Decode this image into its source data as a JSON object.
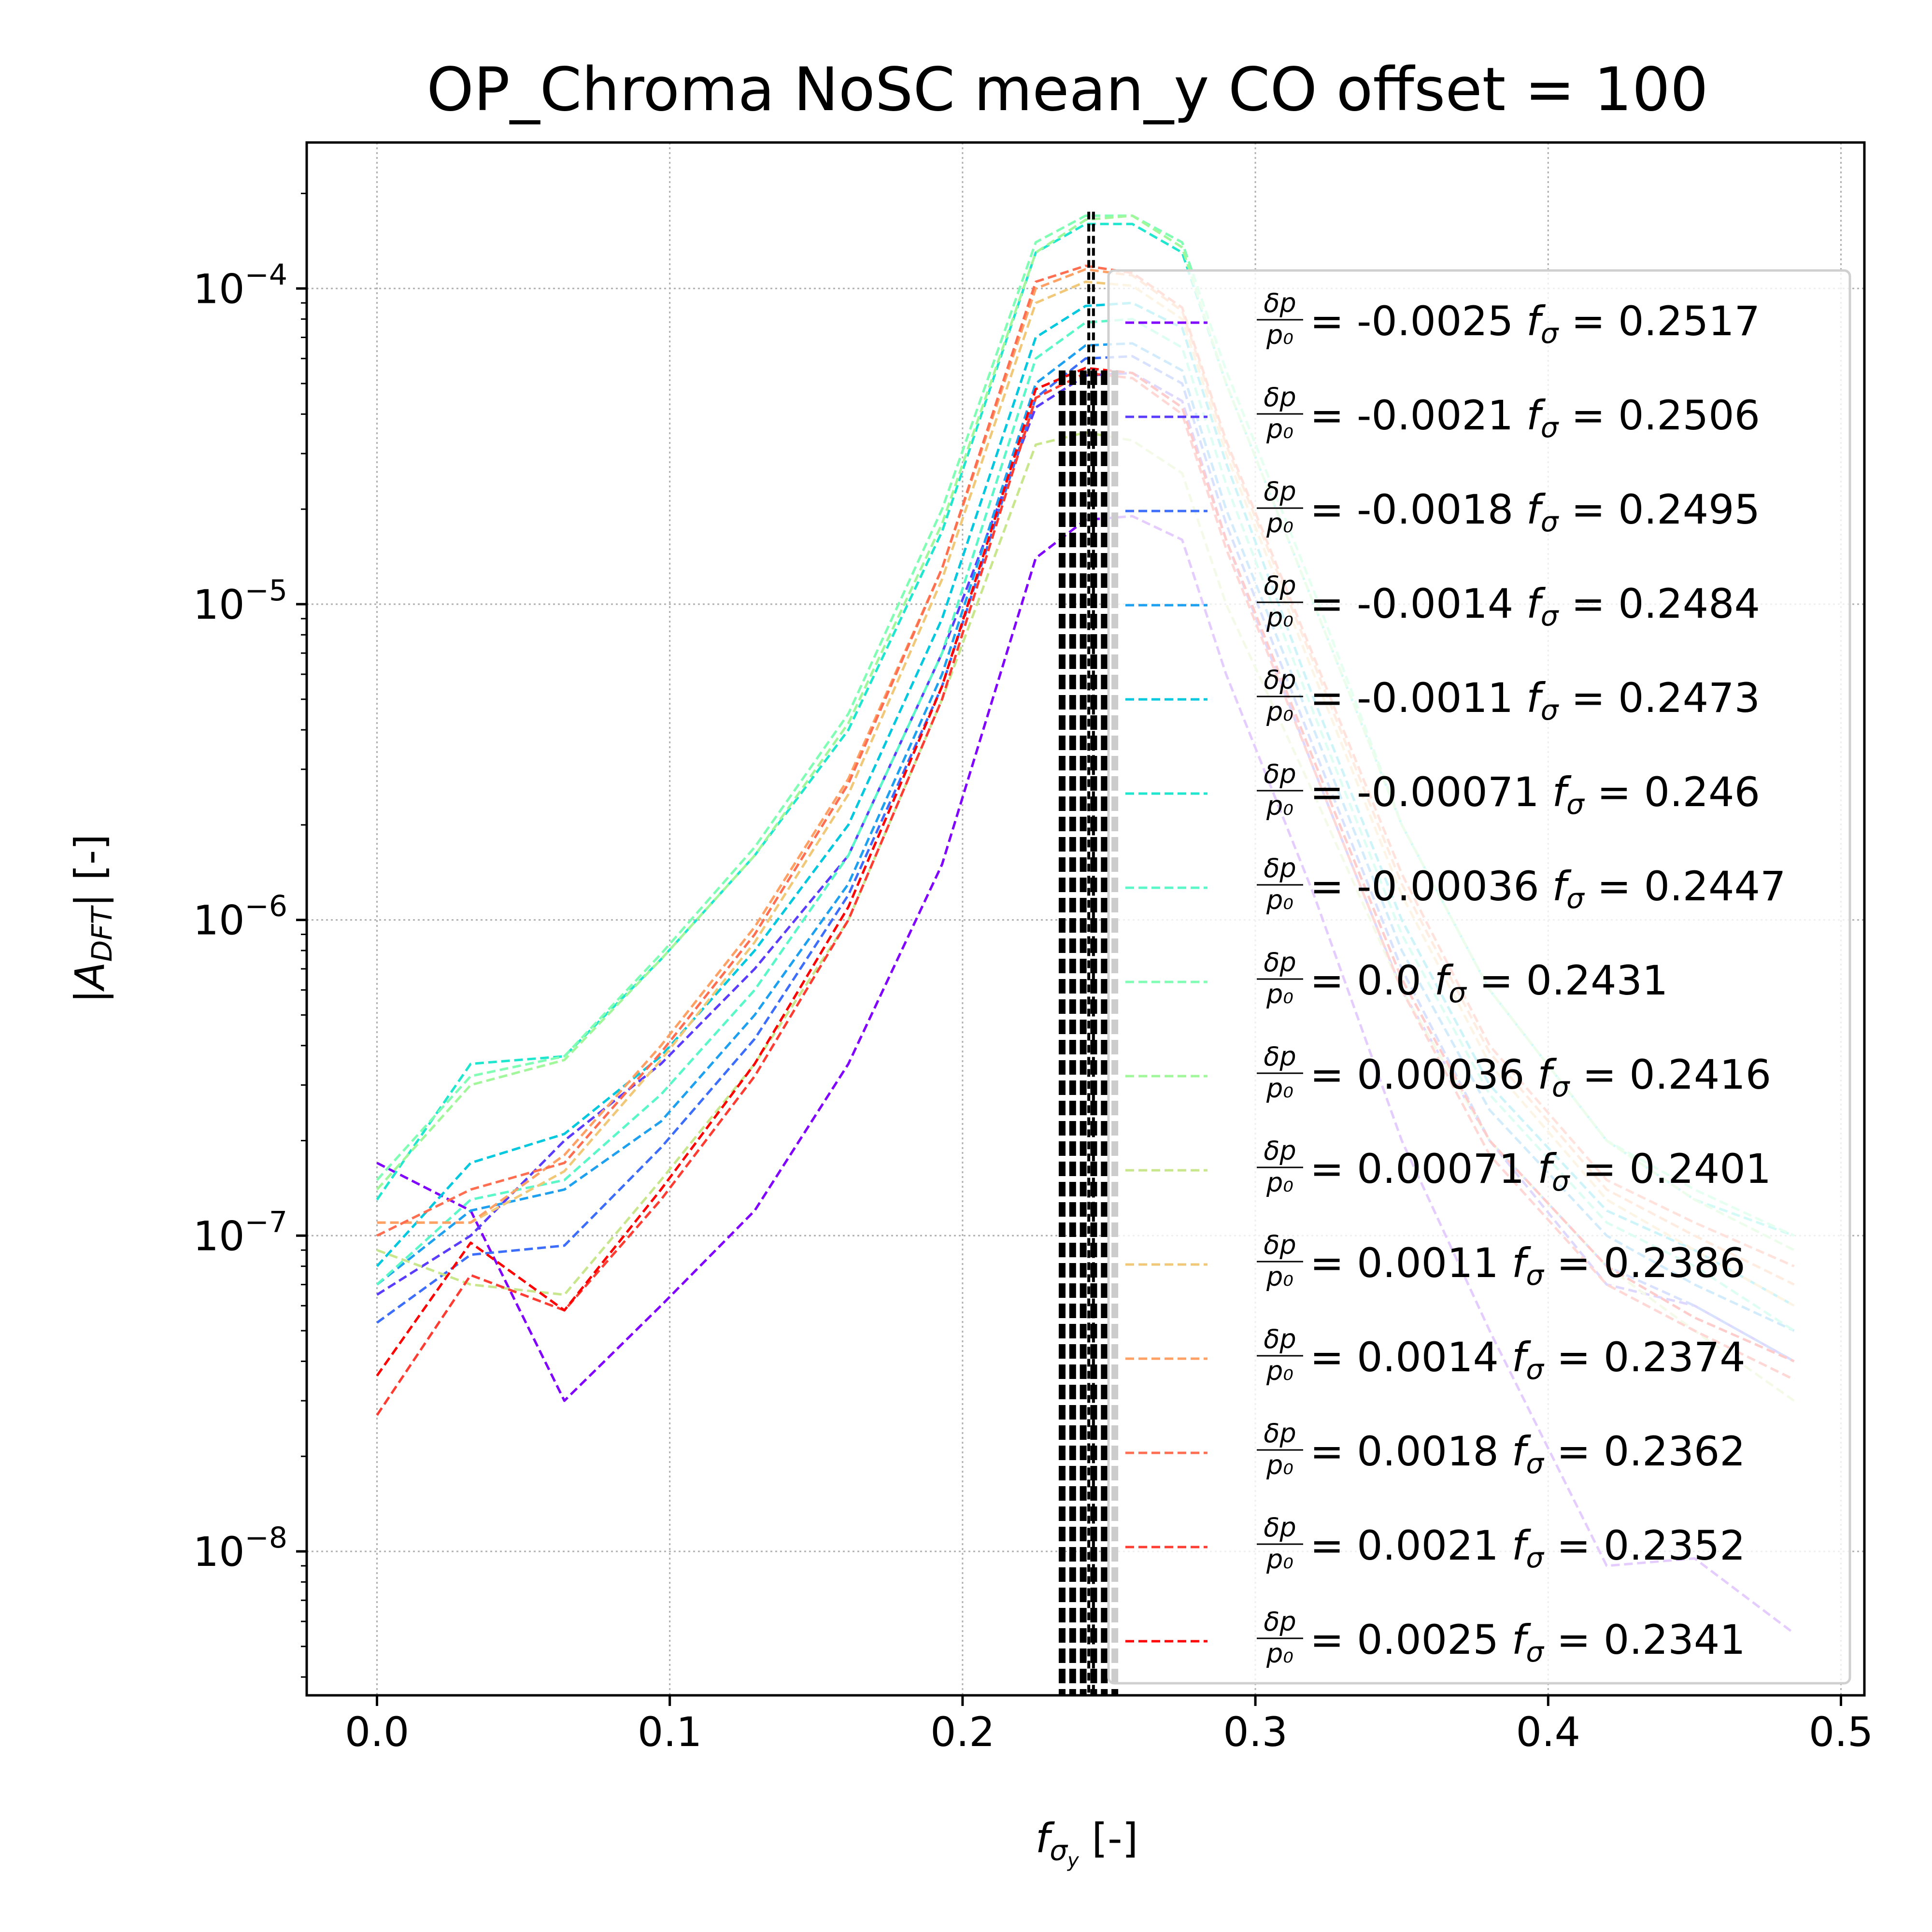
{
  "chart_data": {
    "type": "line",
    "title": "OP_Chroma NoSC mean_y  CO offset = 100",
    "xlabel": "f_σy [-]",
    "ylabel": "|A_DFT| [-]",
    "xscale": "linear",
    "yscale": "log",
    "xlim": [
      -0.024,
      0.508
    ],
    "ylim": [
      3.5e-09,
      0.00029
    ],
    "xticks": [
      "0.0",
      "0.1",
      "0.2",
      "0.3",
      "0.4",
      "0.5"
    ],
    "yticks": [
      {
        "base": "10",
        "exp": "−4",
        "value": 0.0001
      },
      {
        "base": "10",
        "exp": "−5",
        "value": 1e-05
      },
      {
        "base": "10",
        "exp": "−6",
        "value": 1e-06
      },
      {
        "base": "10",
        "exp": "−7",
        "value": 1e-07
      },
      {
        "base": "10",
        "exp": "−8",
        "value": 1e-08
      }
    ],
    "grid": true,
    "legend_position": "right",
    "vertical_markers": {
      "x_from": 0.234,
      "x_to": 0.252,
      "style": "thick dashed black",
      "peak_lines_x": [
        0.2431,
        0.2447
      ]
    },
    "series": [
      {
        "dp": "-0.0025",
        "f_sigma": "0.2517",
        "color": "#7f00ff",
        "x": [
          0.0,
          0.032,
          0.064,
          0.097,
          0.129,
          0.161,
          0.193,
          0.225,
          0.242,
          0.258,
          0.275,
          0.29,
          0.32,
          0.35,
          0.38,
          0.42,
          0.45,
          0.484
        ],
        "y": [
          1.7e-07,
          1.2e-07,
          3e-08,
          6e-08,
          1.2e-07,
          3.5e-07,
          1.5e-06,
          1.4e-05,
          1.85e-05,
          1.9e-05,
          1.6e-05,
          6e-06,
          1.2e-06,
          2e-07,
          5e-08,
          9e-09,
          9.5e-09,
          5.5e-09
        ]
      },
      {
        "dp": "-0.0021",
        "f_sigma": "0.2506",
        "color": "#5a3cfe",
        "x": [
          0.0,
          0.032,
          0.064,
          0.097,
          0.129,
          0.161,
          0.193,
          0.225,
          0.242,
          0.258,
          0.275,
          0.29,
          0.32,
          0.35,
          0.38,
          0.42,
          0.45,
          0.484
        ],
        "y": [
          6.5e-08,
          1e-07,
          2e-07,
          3.5e-07,
          7e-07,
          1.6e-06,
          7e-06,
          4.2e-05,
          5.3e-05,
          5.4e-05,
          4.4e-05,
          1.6e-05,
          3e-06,
          6e-07,
          2e-07,
          7e-08,
          6e-08,
          4e-08
        ]
      },
      {
        "dp": "-0.0018",
        "f_sigma": "0.2495",
        "color": "#3c6efb",
        "x": [
          0.0,
          0.032,
          0.064,
          0.097,
          0.129,
          0.161,
          0.193,
          0.225,
          0.242,
          0.258,
          0.275,
          0.29,
          0.32,
          0.35,
          0.38,
          0.42,
          0.45,
          0.484
        ],
        "y": [
          5.3e-08,
          8.7e-08,
          9.3e-08,
          1.9e-07,
          4.2e-07,
          1.2e-06,
          5.5e-06,
          4.5e-05,
          6e-05,
          6.1e-05,
          5e-05,
          1.8e-05,
          3.5e-06,
          7e-07,
          2e-07,
          8e-08,
          6e-08,
          4e-08
        ]
      },
      {
        "dp": "-0.0014",
        "f_sigma": "0.2484",
        "color": "#1ea0f1",
        "x": [
          0.0,
          0.032,
          0.064,
          0.097,
          0.129,
          0.161,
          0.193,
          0.225,
          0.242,
          0.258,
          0.275,
          0.29,
          0.32,
          0.35,
          0.38,
          0.42,
          0.45,
          0.484
        ],
        "y": [
          7e-08,
          1.2e-07,
          1.4e-07,
          2.3e-07,
          5e-07,
          1.3e-06,
          6e-06,
          5e-05,
          6.6e-05,
          6.7e-05,
          5.5e-05,
          2e-05,
          4e-06,
          8e-07,
          2.5e-07,
          1e-07,
          7e-08,
          5e-08
        ]
      },
      {
        "dp": "-0.0011",
        "f_sigma": "0.2473",
        "color": "#00c8de",
        "x": [
          0.0,
          0.032,
          0.064,
          0.097,
          0.129,
          0.161,
          0.193,
          0.225,
          0.242,
          0.258,
          0.275,
          0.29,
          0.32,
          0.35,
          0.38,
          0.42,
          0.45,
          0.484
        ],
        "y": [
          8e-08,
          1.7e-07,
          2.1e-07,
          3.7e-07,
          8e-07,
          2e-06,
          9e-06,
          7e-05,
          8.8e-05,
          9e-05,
          7.5e-05,
          2.8e-05,
          5e-06,
          1e-06,
          3e-07,
          1.2e-07,
          9e-08,
          6e-08
        ]
      },
      {
        "dp": "-0.00071",
        "f_sigma": "0.246",
        "color": "#1ee6cf",
        "x": [
          0.0,
          0.032,
          0.064,
          0.097,
          0.129,
          0.161,
          0.193,
          0.225,
          0.242,
          0.258,
          0.275,
          0.29,
          0.32,
          0.35,
          0.38,
          0.42,
          0.45,
          0.484
        ],
        "y": [
          1.3e-07,
          3.5e-07,
          3.7e-07,
          7.5e-07,
          1.6e-06,
          4e-06,
          1.7e-05,
          0.00013,
          0.00016,
          0.00016,
          0.00013,
          5e-05,
          1e-05,
          2e-06,
          6e-07,
          2e-07,
          1.3e-07,
          1e-07
        ]
      },
      {
        "dp": "-0.00036",
        "f_sigma": "0.2447",
        "color": "#5af8c8",
        "x": [
          0.0,
          0.032,
          0.064,
          0.097,
          0.129,
          0.161,
          0.193,
          0.225,
          0.242,
          0.258,
          0.275,
          0.29,
          0.32,
          0.35,
          0.38,
          0.42,
          0.45,
          0.484
        ],
        "y": [
          7e-08,
          1.3e-07,
          1.5e-07,
          2.8e-07,
          6e-07,
          1.6e-06,
          7e-06,
          6e-05,
          7.8e-05,
          8e-05,
          6.5e-05,
          2.4e-05,
          4.5e-06,
          9e-07,
          2.8e-07,
          1.1e-07,
          8e-08,
          5e-08
        ]
      },
      {
        "dp": "0.0",
        "f_sigma": "0.2431",
        "color": "#7ffeb4",
        "x": [
          0.0,
          0.032,
          0.064,
          0.097,
          0.129,
          0.161,
          0.193,
          0.225,
          0.242,
          0.258,
          0.275,
          0.29,
          0.32,
          0.35,
          0.38,
          0.42,
          0.45,
          0.484
        ],
        "y": [
          1.5e-07,
          3.2e-07,
          3.7e-07,
          7.8e-07,
          1.7e-06,
          4.5e-06,
          2e-05,
          0.00014,
          0.00017,
          0.00017,
          0.00014,
          5.5e-05,
          1.1e-05,
          2e-06,
          6e-07,
          2e-07,
          1.4e-07,
          1e-07
        ]
      },
      {
        "dp": "0.00036",
        "f_sigma": "0.2416",
        "color": "#a0f89a",
        "x": [
          0.0,
          0.032,
          0.064,
          0.097,
          0.129,
          0.161,
          0.193,
          0.225,
          0.242,
          0.258,
          0.275,
          0.29,
          0.32,
          0.35,
          0.38,
          0.42,
          0.45,
          0.484
        ],
        "y": [
          1.4e-07,
          3e-07,
          3.6e-07,
          7.5e-07,
          1.6e-06,
          4.2e-06,
          1.8e-05,
          0.00013,
          0.000165,
          0.00017,
          0.000135,
          5e-05,
          1e-05,
          2e-06,
          6e-07,
          2e-07,
          1.3e-07,
          9e-08
        ]
      },
      {
        "dp": "0.00071",
        "f_sigma": "0.2401",
        "color": "#c8e68c",
        "x": [
          0.0,
          0.032,
          0.064,
          0.097,
          0.129,
          0.161,
          0.193,
          0.225,
          0.242,
          0.258,
          0.275,
          0.29,
          0.32,
          0.35,
          0.38,
          0.42,
          0.45,
          0.484
        ],
        "y": [
          9e-08,
          7e-08,
          6.5e-08,
          1.5e-07,
          3.5e-07,
          1e-06,
          5e-06,
          3.2e-05,
          3.5e-05,
          3.3e-05,
          2.6e-05,
          1e-05,
          2.5e-06,
          6e-07,
          2e-07,
          8e-08,
          5e-08,
          3e-08
        ]
      },
      {
        "dp": "0.0011",
        "f_sigma": "0.2386",
        "color": "#f0c878",
        "x": [
          0.0,
          0.032,
          0.064,
          0.097,
          0.129,
          0.161,
          0.193,
          0.225,
          0.242,
          0.258,
          0.275,
          0.29,
          0.32,
          0.35,
          0.38,
          0.42,
          0.45,
          0.484
        ],
        "y": [
          1.1e-07,
          1.1e-07,
          1.6e-07,
          3.6e-07,
          8.5e-07,
          2.5e-06,
          1.2e-05,
          9e-05,
          0.000105,
          0.000102,
          8e-05,
          3e-05,
          6e-06,
          1.2e-06,
          3.5e-07,
          1.3e-07,
          9e-08,
          6e-08
        ]
      },
      {
        "dp": "0.0014",
        "f_sigma": "0.2374",
        "color": "#ffa064",
        "x": [
          0.0,
          0.032,
          0.064,
          0.097,
          0.129,
          0.161,
          0.193,
          0.225,
          0.242,
          0.258,
          0.275,
          0.29,
          0.32,
          0.35,
          0.38,
          0.42,
          0.45,
          0.484
        ],
        "y": [
          1.1e-07,
          1.1e-07,
          1.8e-07,
          4e-07,
          9.5e-07,
          2.8e-06,
          1.3e-05,
          0.0001,
          0.000115,
          0.00011,
          8.5e-05,
          3.2e-05,
          6.5e-06,
          1.3e-06,
          3.8e-07,
          1.4e-07,
          1e-07,
          7e-08
        ]
      },
      {
        "dp": "0.0018",
        "f_sigma": "0.2362",
        "color": "#ff6e50",
        "x": [
          0.0,
          0.032,
          0.064,
          0.097,
          0.129,
          0.161,
          0.193,
          0.225,
          0.242,
          0.258,
          0.275,
          0.29,
          0.32,
          0.35,
          0.38,
          0.42,
          0.45,
          0.484
        ],
        "y": [
          1e-07,
          1.4e-07,
          1.7e-07,
          3.8e-07,
          9e-07,
          2.7e-06,
          1.3e-05,
          0.000105,
          0.000118,
          0.000112,
          8.7e-05,
          3.3e-05,
          6.8e-06,
          1.4e-06,
          4e-07,
          1.5e-07,
          1.1e-07,
          8e-08
        ]
      },
      {
        "dp": "0.0021",
        "f_sigma": "0.2352",
        "color": "#ff3c32",
        "x": [
          0.0,
          0.032,
          0.064,
          0.097,
          0.129,
          0.161,
          0.193,
          0.225,
          0.242,
          0.258,
          0.275,
          0.29,
          0.32,
          0.35,
          0.38,
          0.42,
          0.45,
          0.484
        ],
        "y": [
          2.7e-08,
          7.5e-08,
          5.8e-08,
          1.3e-07,
          3.2e-07,
          1e-06,
          5e-06,
          4.5e-05,
          5.4e-05,
          5.2e-05,
          4e-05,
          1.5e-05,
          3e-06,
          6e-07,
          1.8e-07,
          7e-08,
          5e-08,
          3.5e-08
        ]
      },
      {
        "dp": "0.0025",
        "f_sigma": "0.2341",
        "color": "#ff0000",
        "x": [
          0.0,
          0.032,
          0.064,
          0.097,
          0.129,
          0.161,
          0.193,
          0.225,
          0.242,
          0.258,
          0.275,
          0.29,
          0.32,
          0.35,
          0.38,
          0.42,
          0.45,
          0.484
        ],
        "y": [
          3.6e-08,
          9.5e-08,
          5.8e-08,
          1.4e-07,
          3.5e-07,
          1.1e-06,
          5.5e-06,
          4.8e-05,
          5.6e-05,
          5.4e-05,
          4.2e-05,
          1.6e-05,
          3.2e-06,
          6.5e-07,
          2e-07,
          8e-08,
          5.5e-08,
          4e-08
        ]
      }
    ]
  }
}
